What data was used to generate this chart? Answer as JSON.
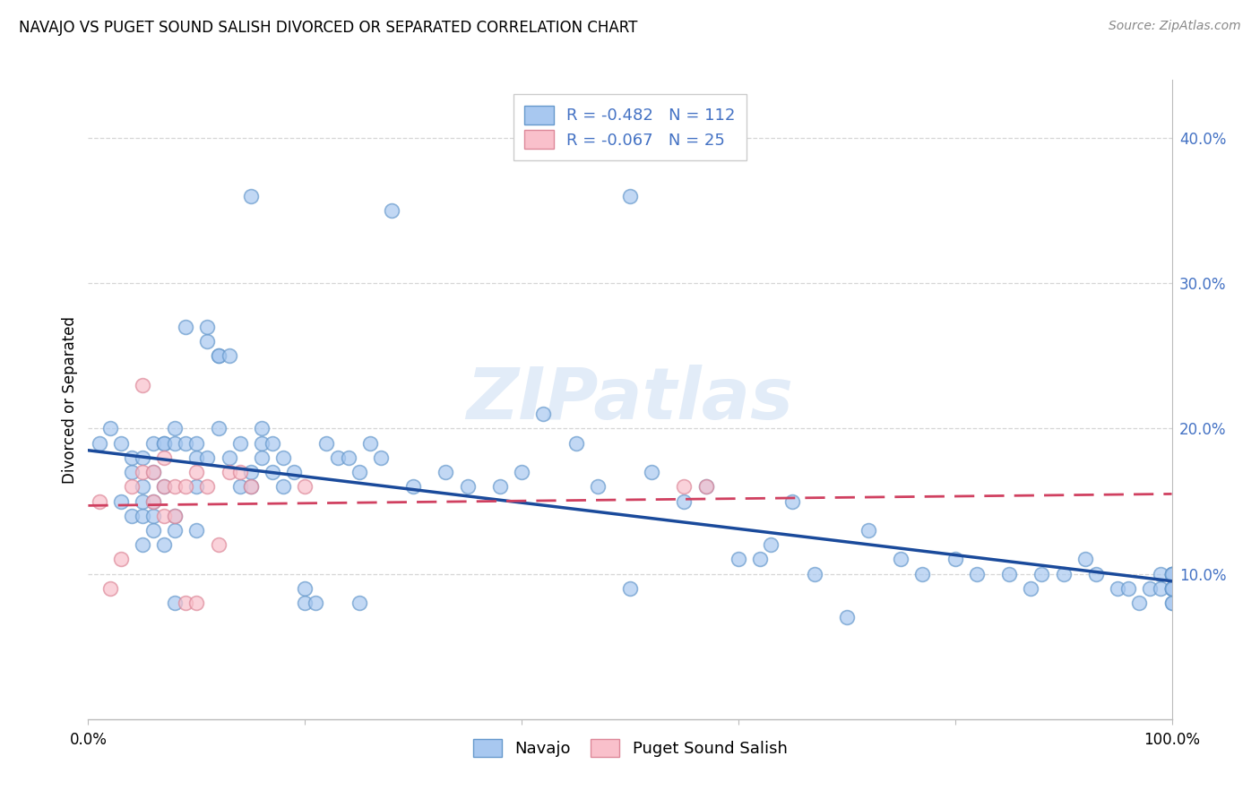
{
  "title": "NAVAJO VS PUGET SOUND SALISH DIVORCED OR SEPARATED CORRELATION CHART",
  "source": "Source: ZipAtlas.com",
  "ylabel": "Divorced or Separated",
  "xlim": [
    0.0,
    1.0
  ],
  "ylim": [
    0.0,
    0.44
  ],
  "yticks": [
    0.1,
    0.2,
    0.3,
    0.4
  ],
  "ytick_labels": [
    "10.0%",
    "20.0%",
    "30.0%",
    "40.0%"
  ],
  "xtick_labels": [
    "0.0%",
    "100.0%"
  ],
  "navajo_R": "-0.482",
  "navajo_N": "112",
  "salish_R": "-0.067",
  "salish_N": "25",
  "navajo_color": "#A8C8F0",
  "navajo_edge_color": "#6699CC",
  "salish_color": "#F9C0CB",
  "salish_edge_color": "#DD8899",
  "navajo_line_color": "#1A4A9B",
  "salish_line_color": "#D04060",
  "background_color": "#FFFFFF",
  "grid_color": "#CCCCCC",
  "watermark": "ZIPatlas",
  "title_fontsize": 12,
  "tick_fontsize": 12,
  "legend_fontsize": 13,
  "navajo_line_start_y": 0.185,
  "navajo_line_end_y": 0.095,
  "salish_line_start_y": 0.147,
  "salish_line_end_y": 0.155,
  "navajo_x": [
    0.01,
    0.02,
    0.03,
    0.03,
    0.04,
    0.04,
    0.04,
    0.05,
    0.05,
    0.05,
    0.05,
    0.05,
    0.06,
    0.06,
    0.06,
    0.06,
    0.06,
    0.07,
    0.07,
    0.07,
    0.07,
    0.08,
    0.08,
    0.08,
    0.08,
    0.08,
    0.09,
    0.09,
    0.1,
    0.1,
    0.1,
    0.1,
    0.11,
    0.11,
    0.11,
    0.12,
    0.12,
    0.12,
    0.13,
    0.13,
    0.14,
    0.14,
    0.15,
    0.15,
    0.15,
    0.16,
    0.16,
    0.16,
    0.17,
    0.17,
    0.18,
    0.18,
    0.19,
    0.2,
    0.2,
    0.21,
    0.22,
    0.23,
    0.24,
    0.25,
    0.25,
    0.26,
    0.27,
    0.28,
    0.3,
    0.33,
    0.35,
    0.38,
    0.4,
    0.42,
    0.45,
    0.47,
    0.5,
    0.5,
    0.52,
    0.55,
    0.57,
    0.6,
    0.62,
    0.63,
    0.65,
    0.67,
    0.7,
    0.72,
    0.75,
    0.77,
    0.8,
    0.82,
    0.85,
    0.87,
    0.88,
    0.9,
    0.92,
    0.93,
    0.95,
    0.96,
    0.97,
    0.98,
    0.99,
    0.99,
    1.0,
    1.0,
    1.0,
    1.0,
    1.0,
    1.0,
    1.0,
    1.0,
    1.0,
    1.0,
    1.0,
    1.0
  ],
  "navajo_y": [
    0.19,
    0.2,
    0.19,
    0.15,
    0.17,
    0.14,
    0.18,
    0.14,
    0.16,
    0.18,
    0.15,
    0.12,
    0.19,
    0.14,
    0.15,
    0.17,
    0.13,
    0.12,
    0.16,
    0.19,
    0.19,
    0.08,
    0.14,
    0.13,
    0.19,
    0.2,
    0.19,
    0.27,
    0.19,
    0.16,
    0.13,
    0.18,
    0.26,
    0.27,
    0.18,
    0.2,
    0.25,
    0.25,
    0.25,
    0.18,
    0.19,
    0.16,
    0.17,
    0.16,
    0.36,
    0.19,
    0.18,
    0.2,
    0.19,
    0.17,
    0.18,
    0.16,
    0.17,
    0.09,
    0.08,
    0.08,
    0.19,
    0.18,
    0.18,
    0.17,
    0.08,
    0.19,
    0.18,
    0.35,
    0.16,
    0.17,
    0.16,
    0.16,
    0.17,
    0.21,
    0.19,
    0.16,
    0.36,
    0.09,
    0.17,
    0.15,
    0.16,
    0.11,
    0.11,
    0.12,
    0.15,
    0.1,
    0.07,
    0.13,
    0.11,
    0.1,
    0.11,
    0.1,
    0.1,
    0.09,
    0.1,
    0.1,
    0.11,
    0.1,
    0.09,
    0.09,
    0.08,
    0.09,
    0.1,
    0.09,
    0.1,
    0.1,
    0.09,
    0.08,
    0.1,
    0.09,
    0.09,
    0.08,
    0.1,
    0.09,
    0.1,
    0.09
  ],
  "salish_x": [
    0.01,
    0.02,
    0.03,
    0.04,
    0.05,
    0.05,
    0.06,
    0.06,
    0.07,
    0.07,
    0.07,
    0.08,
    0.08,
    0.09,
    0.09,
    0.1,
    0.1,
    0.11,
    0.12,
    0.13,
    0.14,
    0.15,
    0.2,
    0.55,
    0.57
  ],
  "salish_y": [
    0.15,
    0.09,
    0.11,
    0.16,
    0.23,
    0.17,
    0.17,
    0.15,
    0.16,
    0.14,
    0.18,
    0.16,
    0.14,
    0.16,
    0.08,
    0.08,
    0.17,
    0.16,
    0.12,
    0.17,
    0.17,
    0.16,
    0.16,
    0.16,
    0.16
  ]
}
